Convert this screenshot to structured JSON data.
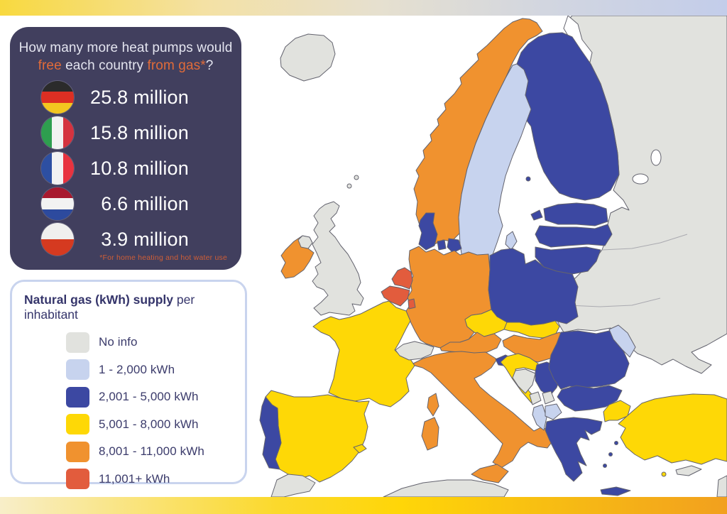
{
  "page": {
    "top_bar_gradient": [
      "#f8d93f",
      "#e6e0cf",
      "#c3cdea"
    ],
    "bottom_bar_gradient": [
      "#f8eec9",
      "#ffd608",
      "#f2a01e"
    ],
    "sea_color": "#ffffff"
  },
  "header_panel": {
    "bg_color": "#413f5e",
    "accent_color": "#e06b39",
    "title_line1": "How many more heat pumps would",
    "title_line2_parts": [
      {
        "text": "free",
        "accent": true
      },
      {
        "text": " each country ",
        "accent": false
      },
      {
        "text": "from gas*",
        "accent": true
      },
      {
        "text": "?",
        "accent": false
      }
    ],
    "entries": [
      {
        "country": "Germany",
        "value": "25.8 million",
        "flag": {
          "orientation": "horizontal",
          "colors": [
            "#2b2b2b",
            "#dc2f23",
            "#f3c620"
          ]
        }
      },
      {
        "country": "Italy",
        "value": "15.8 million",
        "flag": {
          "orientation": "vertical",
          "colors": [
            "#2e9e4f",
            "#f2f2f2",
            "#d5333f"
          ]
        }
      },
      {
        "country": "France",
        "value": "10.8 million",
        "flag": {
          "orientation": "vertical",
          "colors": [
            "#2d4fa2",
            "#f2f2f2",
            "#e8333f"
          ]
        }
      },
      {
        "country": "Netherlands",
        "value": "6.6 million",
        "flag": {
          "orientation": "horizontal",
          "colors": [
            "#a8192e",
            "#f2f2f2",
            "#2d4a9e"
          ]
        }
      },
      {
        "country": "Poland",
        "value": "3.9 million",
        "flag": {
          "orientation": "horizontal",
          "colors": [
            "#f0f0ee",
            "#f0f0ee",
            "#d53a20",
            "#d53a20"
          ]
        }
      }
    ],
    "footnote": "*For home heating and hot water use"
  },
  "legend": {
    "title_bold": "Natural gas (kWh) supply",
    "title_rest": " per inhabitant",
    "items": [
      {
        "label": "No info",
        "color": "#e1e2de",
        "key": "no_info"
      },
      {
        "label": "1 - 2,000 kWh",
        "color": "#c7d3ee",
        "key": "kwh_1_2000"
      },
      {
        "label": "2,001 - 5,000 kWh",
        "color": "#3c48a2",
        "key": "kwh_2001_5000"
      },
      {
        "label": "5,001 - 8,000 kWh",
        "color": "#fed806",
        "key": "kwh_5001_8000"
      },
      {
        "label": "8,001 - 11,000 kWh",
        "color": "#f0922f",
        "key": "kwh_8001_11000"
      },
      {
        "label": "11,001+ kWh",
        "color": "#e25c3d",
        "key": "kwh_11001_plus"
      }
    ]
  },
  "map": {
    "border_color": "#63636e",
    "palette": {
      "no_info": "#e1e2de",
      "kwh_1_2000": "#c7d3ee",
      "kwh_2001_5000": "#3c48a2",
      "kwh_5001_8000": "#fed806",
      "kwh_8001_11000": "#f0922f",
      "kwh_11001_plus": "#e25c3d"
    },
    "countries": {
      "iceland": "no_info",
      "norway": "kwh_8001_11000",
      "sweden": "kwh_1_2000",
      "gotland": "kwh_1_2000",
      "aland": "kwh_2001_5000",
      "finland": "kwh_2001_5000",
      "russia_belarus_ukraine": "no_info",
      "estonia": "kwh_2001_5000",
      "saaremaa": "kwh_2001_5000",
      "latvia": "kwh_2001_5000",
      "lithuania": "kwh_2001_5000",
      "kaliningrad": "no_info",
      "denmark": "kwh_2001_5000",
      "funen": "kwh_2001_5000",
      "zealand": "kwh_2001_5000",
      "united_kingdom": "no_info",
      "northern_ireland": "no_info",
      "orkney": "no_info",
      "shetland": "no_info",
      "ireland": "kwh_8001_11000",
      "netherlands": "kwh_11001_plus",
      "belgium": "kwh_11001_plus",
      "luxembourg": "kwh_11001_plus",
      "germany": "kwh_8001_11000",
      "poland": "kwh_2001_5000",
      "czechia": "kwh_5001_8000",
      "slovakia": "kwh_5001_8000",
      "austria": "kwh_8001_11000",
      "hungary": "kwh_8001_11000",
      "switzerland": "no_info",
      "france": "kwh_5001_8000",
      "corsica": "kwh_8001_11000",
      "spain": "kwh_5001_8000",
      "balearics": "kwh_5001_8000",
      "portugal": "kwh_2001_5000",
      "italy": "kwh_8001_11000",
      "sicily": "kwh_8001_11000",
      "sardinia": "kwh_8001_11000",
      "slovenia": "kwh_2001_5000",
      "croatia": "kwh_5001_8000",
      "bosnia": "no_info",
      "serbia": "kwh_2001_5000",
      "montenegro": "no_info",
      "kosovo": "no_info",
      "albania": "kwh_1_2000",
      "north_macedonia": "kwh_1_2000",
      "greece": "kwh_2001_5000",
      "crete": "kwh_2001_5000",
      "aegean_islands": "kwh_2001_5000",
      "bulgaria": "kwh_2001_5000",
      "romania": "kwh_2001_5000",
      "moldova": "kwh_1_2000",
      "turkey_thrace": "kwh_5001_8000",
      "turkey": "kwh_5001_8000",
      "rhodes": "kwh_5001_8000",
      "cyprus": "no_info",
      "morocco": "no_info",
      "algeria_tunisia": "no_info",
      "syria": "no_info"
    }
  }
}
